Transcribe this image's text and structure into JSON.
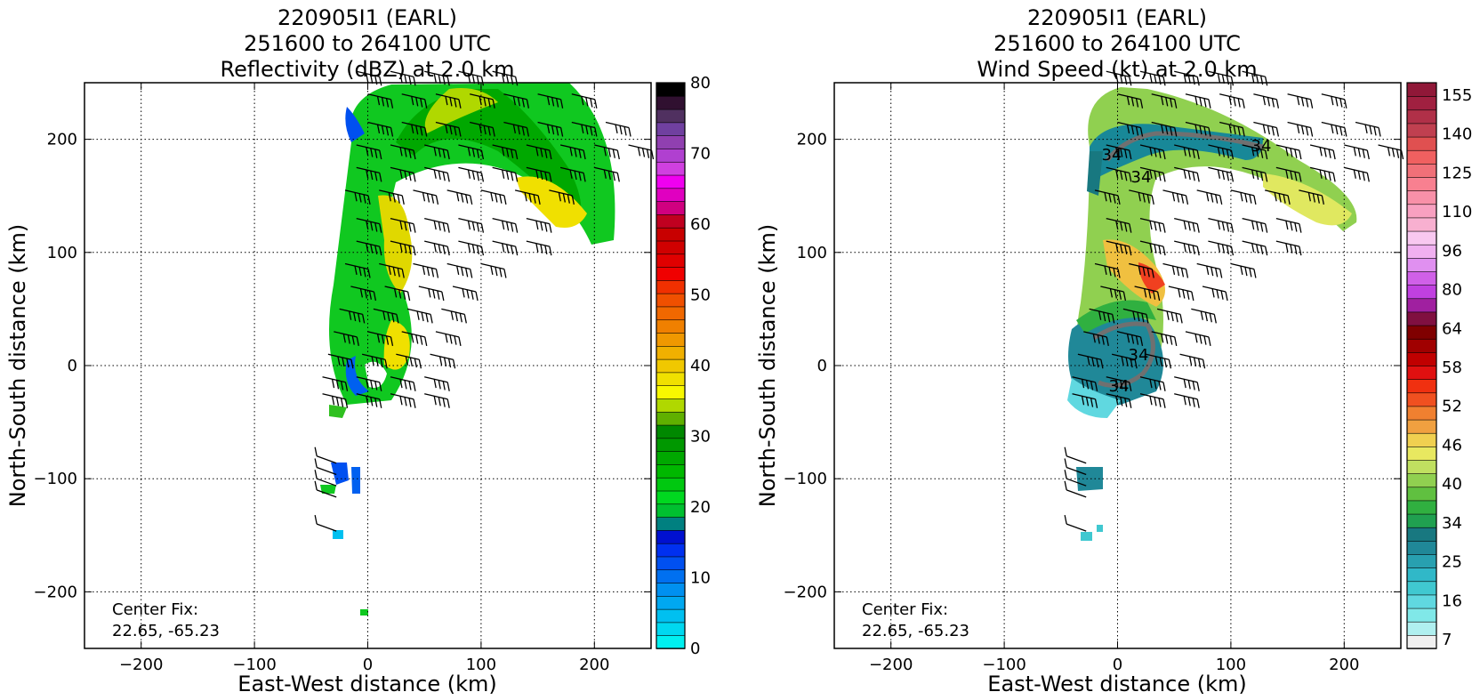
{
  "panels": [
    {
      "title_lines": [
        "220905I1 (EARL)",
        "251600 to 264100 UTC",
        "Reflectivity (dBZ) at 2.0 km"
      ],
      "xlabel": "East-West distance (km)",
      "ylabel": "North-South distance (km)",
      "xticks": [
        -200,
        -100,
        0,
        100,
        200
      ],
      "yticks": [
        -200,
        -100,
        0,
        100,
        200
      ],
      "center_fix_label": "Center Fix:",
      "center_fix_value": "22.65, -65.23",
      "colorbar": {
        "ticks": [
          "0",
          "10",
          "20",
          "30",
          "40",
          "50",
          "60",
          "70",
          "80"
        ],
        "colors": [
          "#00f0f0",
          "#00d8f0",
          "#00c0f0",
          "#00a8f0",
          "#0090f0",
          "#0070f0",
          "#0050f0",
          "#0030f0",
          "#0010d0",
          "#008080",
          "#00c030",
          "#00d820",
          "#00c810",
          "#00b800",
          "#00a800",
          "#009800",
          "#008800",
          "#60b000",
          "#b0d800",
          "#f8f800",
          "#f0e000",
          "#f0c800",
          "#f0b000",
          "#f09800",
          "#f08000",
          "#f06800",
          "#f05000",
          "#f03000",
          "#f00000",
          "#e00000",
          "#d00000",
          "#c80000",
          "#c00020",
          "#d00080",
          "#e000c0",
          "#f000f0",
          "#d040e0",
          "#b040d0",
          "#9040b0",
          "#7040a0",
          "#503060",
          "#301030",
          "#000000"
        ]
      },
      "chart_data": {
        "type": "heatmap",
        "title": "220905I1 (EARL) 251600 to 264100 UTC Reflectivity (dBZ) at 2.0 km",
        "xlabel": "East-West distance (km)",
        "ylabel": "North-South distance (km)",
        "xlim": [
          -250,
          250
        ],
        "ylim": [
          -250,
          250
        ],
        "grid": true,
        "colorbar_range": [
          0,
          80
        ],
        "colorbar_units": "dBZ",
        "center_fix": [
          22.65,
          -65.23
        ]
      }
    },
    {
      "title_lines": [
        "220905I1 (EARL)",
        "251600 to 264100 UTC",
        "Wind Speed (kt) at 2.0 km"
      ],
      "xlabel": "East-West distance (km)",
      "ylabel": "North-South distance (km)",
      "xticks": [
        -200,
        -100,
        0,
        100,
        200
      ],
      "yticks": [
        -200,
        -100,
        0,
        100,
        200
      ],
      "center_fix_label": "Center Fix:",
      "center_fix_value": "22.65, -65.23",
      "contour_labels": [
        "34",
        "34",
        "34",
        "34",
        "34"
      ],
      "colorbar": {
        "ticks": [
          "7",
          "16",
          "25",
          "34",
          "40",
          "46",
          "52",
          "58",
          "64",
          "80",
          "96",
          "110",
          "125",
          "140",
          "155"
        ],
        "colors": [
          "#f0f0f0",
          "#b0f0f0",
          "#80e8e8",
          "#60d8e0",
          "#40c8d0",
          "#30b8c8",
          "#28a0b0",
          "#208898",
          "#187880",
          "#20a050",
          "#30b040",
          "#60c040",
          "#90d050",
          "#c0e060",
          "#e8e860",
          "#f0d050",
          "#f0a040",
          "#f08030",
          "#f05020",
          "#f03010",
          "#e01010",
          "#c00000",
          "#a00000",
          "#800000",
          "#801040",
          "#a020a0",
          "#c040e0",
          "#d060e8",
          "#e090f0",
          "#f0b0f0",
          "#f8c8f0",
          "#f8b0d0",
          "#f8a0c0",
          "#f890a8",
          "#f88090",
          "#f07078",
          "#f06060",
          "#e05050",
          "#c04050",
          "#b03048",
          "#a02040",
          "#901838"
        ]
      },
      "chart_data": {
        "type": "heatmap",
        "title": "220905I1 (EARL) 251600 to 264100 UTC Wind Speed (kt) at 2.0 km",
        "xlabel": "East-West distance (km)",
        "ylabel": "North-South distance (km)",
        "xlim": [
          -250,
          250
        ],
        "ylim": [
          -250,
          250
        ],
        "grid": true,
        "colorbar_range": [
          0,
          160
        ],
        "colorbar_units": "kt",
        "contour_level": 34,
        "center_fix": [
          22.65,
          -65.23
        ]
      }
    }
  ]
}
